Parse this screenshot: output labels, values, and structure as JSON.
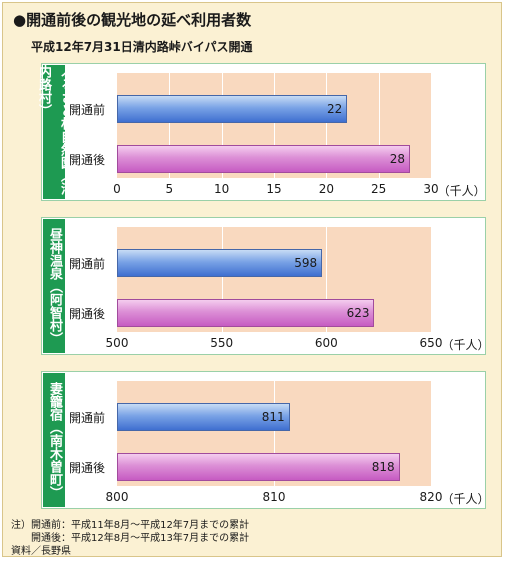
{
  "header": {
    "title": "●開通前後の観光地の延べ利用者数",
    "subtitle": "平成12年7月31日清内路峠バイパス開通"
  },
  "chart_data": [
    {
      "type": "bar",
      "orientation": "horizontal",
      "location": "ふるさと村自然園（清内路村）",
      "categories": [
        "開通前",
        "開通後"
      ],
      "values": [
        22,
        28
      ],
      "xlim": [
        0,
        30
      ],
      "ticks": [
        "0",
        "5",
        "10",
        "15",
        "20",
        "25",
        "30"
      ],
      "unit": "（千人）"
    },
    {
      "type": "bar",
      "orientation": "horizontal",
      "location": "昼神温泉（阿智村）",
      "categories": [
        "開通前",
        "開通後"
      ],
      "values": [
        598,
        623
      ],
      "xlim": [
        500,
        650
      ],
      "ticks": [
        "500",
        "550",
        "600",
        "650"
      ],
      "unit": "（千人）"
    },
    {
      "type": "bar",
      "orientation": "horizontal",
      "location": "妻籠宿（南木曽町）",
      "categories": [
        "開通前",
        "開通後"
      ],
      "values": [
        811,
        818
      ],
      "xlim": [
        800,
        820
      ],
      "ticks": [
        "800",
        "810",
        "820"
      ],
      "unit": "（千人）"
    }
  ],
  "notes": {
    "line1": "注）開通前：平成11年8月～平成12年7月までの累計",
    "line2": "　　開通後：平成12年8月～平成13年7月までの累計",
    "source": "資料／長野県"
  },
  "colors": {
    "before_bar": "#5b86da",
    "after_bar": "#d27bcf",
    "plot_bg": "#f9d9bf",
    "tab": "#1e9a52",
    "frame_bg": "#fbf1d3"
  }
}
